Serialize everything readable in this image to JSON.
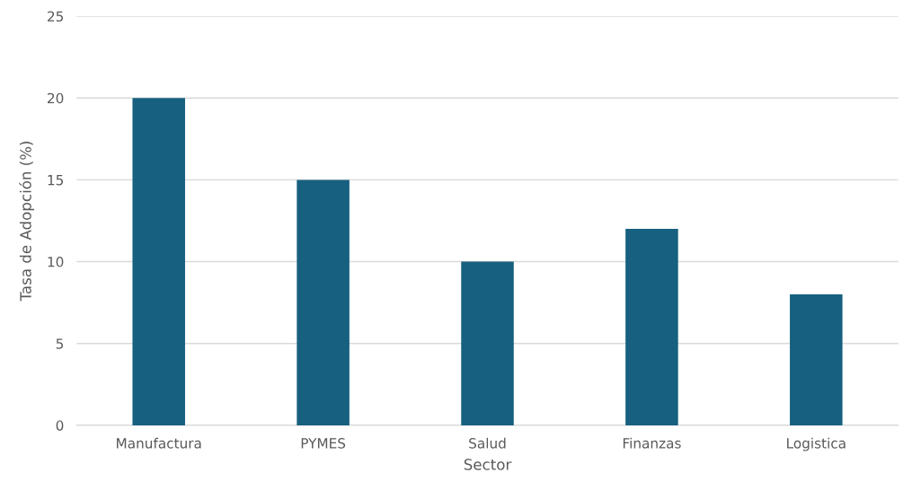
{
  "chart_data": {
    "type": "bar",
    "xlabel": "Sector",
    "ylabel": "Tasa de Adopción (%)",
    "categories": [
      "Manufactura",
      "PYMES",
      "Salud",
      "Finanzas",
      "Logistica"
    ],
    "series": [
      {
        "color": "#17607f",
        "values": [
          20,
          15,
          10,
          12,
          8
        ]
      }
    ],
    "ylim": [
      0,
      25
    ],
    "yticks": [
      0,
      5,
      10,
      15,
      20,
      25
    ],
    "grid": "y",
    "legend": false
  }
}
